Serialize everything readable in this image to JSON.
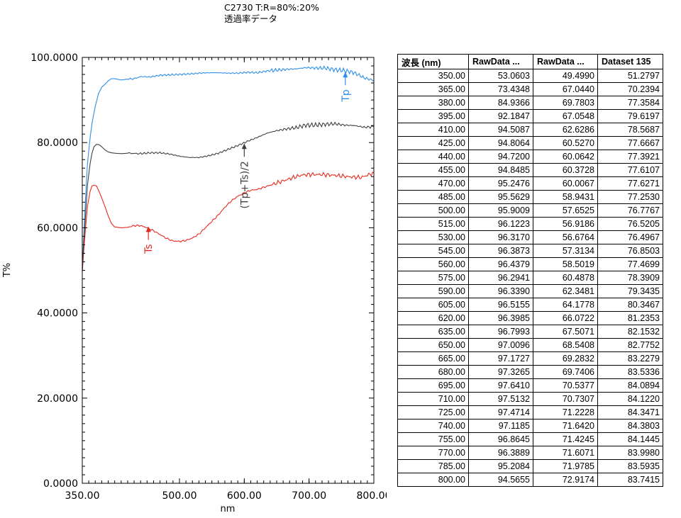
{
  "title": {
    "line1": "C2730 T:R=80%:20%",
    "line2": "透過率データ"
  },
  "colors": {
    "tp": "#2f8fe8",
    "ts": "#e8281e",
    "avg": "#404040",
    "axis": "#000000"
  },
  "chart_data": {
    "type": "line",
    "title": "C2730 T:R=80%:20% 透過率データ",
    "xlabel": "nm",
    "ylabel": "T%",
    "xlim": [
      350,
      800
    ],
    "ylim": [
      0,
      100
    ],
    "xticks": [
      350,
      500,
      600,
      700,
      800
    ],
    "xtick_labels": [
      "350.00",
      "500.00",
      "600.00",
      "700.00",
      "800.00"
    ],
    "yticks": [
      0,
      20,
      40,
      60,
      80,
      100
    ],
    "ytick_labels": [
      "0.0000",
      "20.0000",
      "40.0000",
      "60.0000",
      "80.0000",
      "100.0000"
    ],
    "series": [
      {
        "name": "RawData Tp",
        "x": [
          350,
          352,
          355,
          358,
          362,
          365,
          370,
          375,
          380,
          385,
          390,
          395,
          400,
          410,
          420,
          430,
          440,
          455,
          470,
          485,
          500,
          515,
          530,
          545,
          560,
          575,
          590,
          605,
          620,
          635,
          650,
          665,
          680,
          695,
          710,
          725,
          740,
          755,
          770,
          785,
          800
        ],
        "y": [
          50.5,
          57,
          67,
          75,
          81,
          84.5,
          88.5,
          91.5,
          93.0,
          93.7,
          94.5,
          95.0,
          95.0,
          94.7,
          94.9,
          95.0,
          95.5,
          95.4,
          95.8,
          95.9,
          96.0,
          96.1,
          96.3,
          96.4,
          96.4,
          96.3,
          96.3,
          96.5,
          96.4,
          96.8,
          97.0,
          97.2,
          97.3,
          97.6,
          97.5,
          97.5,
          97.1,
          96.9,
          96.4,
          95.2,
          94.6
        ]
      },
      {
        "name": "RawData Ts",
        "x": [
          350,
          352,
          355,
          358,
          362,
          365,
          368,
          372,
          376,
          380,
          385,
          390,
          395,
          400,
          410,
          420,
          430,
          440,
          450,
          460,
          470,
          480,
          490,
          500,
          510,
          520,
          530,
          540,
          550,
          560,
          570,
          580,
          590,
          600,
          610,
          620,
          630,
          640,
          650,
          660,
          670,
          680,
          690,
          700,
          720,
          740,
          760,
          780,
          800
        ],
        "y": [
          49.5,
          54,
          60,
          65,
          68.5,
          69.8,
          70.0,
          69.8,
          68.5,
          67.0,
          65.0,
          62.8,
          61.0,
          60.2,
          60.0,
          60.1,
          60.5,
          60.5,
          60.0,
          59.3,
          58.4,
          57.5,
          56.9,
          56.8,
          57.0,
          57.6,
          58.5,
          60.0,
          61.5,
          63.0,
          64.8,
          66.3,
          67.4,
          68.2,
          68.8,
          69.0,
          69.5,
          70.0,
          70.5,
          71.0,
          71.5,
          72.0,
          72.4,
          72.5,
          72.5,
          72.3,
          72.0,
          71.8,
          72.9
        ]
      },
      {
        "name": "Dataset 135 (Tp+Ts)/2",
        "x": [
          350,
          352,
          355,
          358,
          362,
          365,
          368,
          372,
          376,
          380,
          385,
          390,
          395,
          400,
          410,
          420,
          440,
          455,
          470,
          485,
          500,
          515,
          530,
          545,
          560,
          575,
          590,
          605,
          620,
          635,
          650,
          665,
          680,
          695,
          710,
          725,
          740,
          755,
          770,
          785,
          800
        ],
        "y": [
          50.0,
          56,
          63,
          70,
          75,
          77.5,
          79.0,
          79.6,
          79.5,
          79.0,
          78.3,
          77.8,
          77.6,
          77.5,
          77.4,
          77.5,
          77.4,
          77.6,
          77.6,
          77.3,
          76.8,
          76.5,
          76.5,
          76.9,
          77.5,
          78.4,
          79.3,
          80.3,
          81.2,
          82.2,
          82.8,
          83.2,
          83.5,
          84.1,
          84.1,
          84.3,
          84.4,
          84.1,
          84.0,
          83.6,
          83.7
        ]
      }
    ],
    "annotations": [
      {
        "label": "Tp",
        "x": 756,
        "y": 96.8,
        "series": "RawData Tp"
      },
      {
        "label": "(Tp+Ts)/2",
        "x": 600,
        "y": 80.0,
        "series": "Dataset 135 (Tp+Ts)/2"
      },
      {
        "label": "Ts",
        "x": 452,
        "y": 60.5,
        "series": "RawData Ts"
      }
    ]
  },
  "table": {
    "headers": [
      "波長 (nm)",
      "RawData ...",
      "RawData ...",
      "Dataset 135"
    ],
    "rows": [
      [
        "350.00",
        "53.0603",
        "49.4990",
        "51.2797"
      ],
      [
        "365.00",
        "73.4348",
        "67.0440",
        "70.2394"
      ],
      [
        "380.00",
        "84.9366",
        "69.7803",
        "77.3584"
      ],
      [
        "395.00",
        "92.1847",
        "67.0548",
        "79.6197"
      ],
      [
        "410.00",
        "94.5087",
        "62.6286",
        "78.5687"
      ],
      [
        "425.00",
        "94.8064",
        "60.5270",
        "77.6667"
      ],
      [
        "440.00",
        "94.7200",
        "60.0642",
        "77.3921"
      ],
      [
        "455.00",
        "94.8485",
        "60.3728",
        "77.6107"
      ],
      [
        "470.00",
        "95.2476",
        "60.0067",
        "77.6271"
      ],
      [
        "485.00",
        "95.5629",
        "58.9431",
        "77.2530"
      ],
      [
        "500.00",
        "95.9009",
        "57.6525",
        "76.7767"
      ],
      [
        "515.00",
        "96.1223",
        "56.9186",
        "76.5205"
      ],
      [
        "530.00",
        "96.3170",
        "56.6764",
        "76.4967"
      ],
      [
        "545.00",
        "96.3873",
        "57.3134",
        "76.8503"
      ],
      [
        "560.00",
        "96.4379",
        "58.5019",
        "77.4699"
      ],
      [
        "575.00",
        "96.2941",
        "60.4878",
        "78.3909"
      ],
      [
        "590.00",
        "96.3390",
        "62.3481",
        "79.3435"
      ],
      [
        "605.00",
        "96.5155",
        "64.1778",
        "80.3467"
      ],
      [
        "620.00",
        "96.3985",
        "66.0722",
        "81.2353"
      ],
      [
        "635.00",
        "96.7993",
        "67.5071",
        "82.1532"
      ],
      [
        "650.00",
        "97.0096",
        "68.5408",
        "82.7752"
      ],
      [
        "665.00",
        "97.1727",
        "69.2832",
        "83.2279"
      ],
      [
        "680.00",
        "97.3265",
        "69.7406",
        "83.5336"
      ],
      [
        "695.00",
        "97.6410",
        "70.5377",
        "84.0894"
      ],
      [
        "710.00",
        "97.5132",
        "70.7307",
        "84.1220"
      ],
      [
        "725.00",
        "97.4714",
        "71.2228",
        "84.3471"
      ],
      [
        "740.00",
        "97.1185",
        "71.6420",
        "84.3803"
      ],
      [
        "755.00",
        "96.8645",
        "71.4245",
        "84.1445"
      ],
      [
        "770.00",
        "96.3889",
        "71.6071",
        "83.9980"
      ],
      [
        "785.00",
        "95.2084",
        "71.9785",
        "83.5935"
      ],
      [
        "800.00",
        "94.5655",
        "72.9174",
        "83.7415"
      ]
    ]
  }
}
